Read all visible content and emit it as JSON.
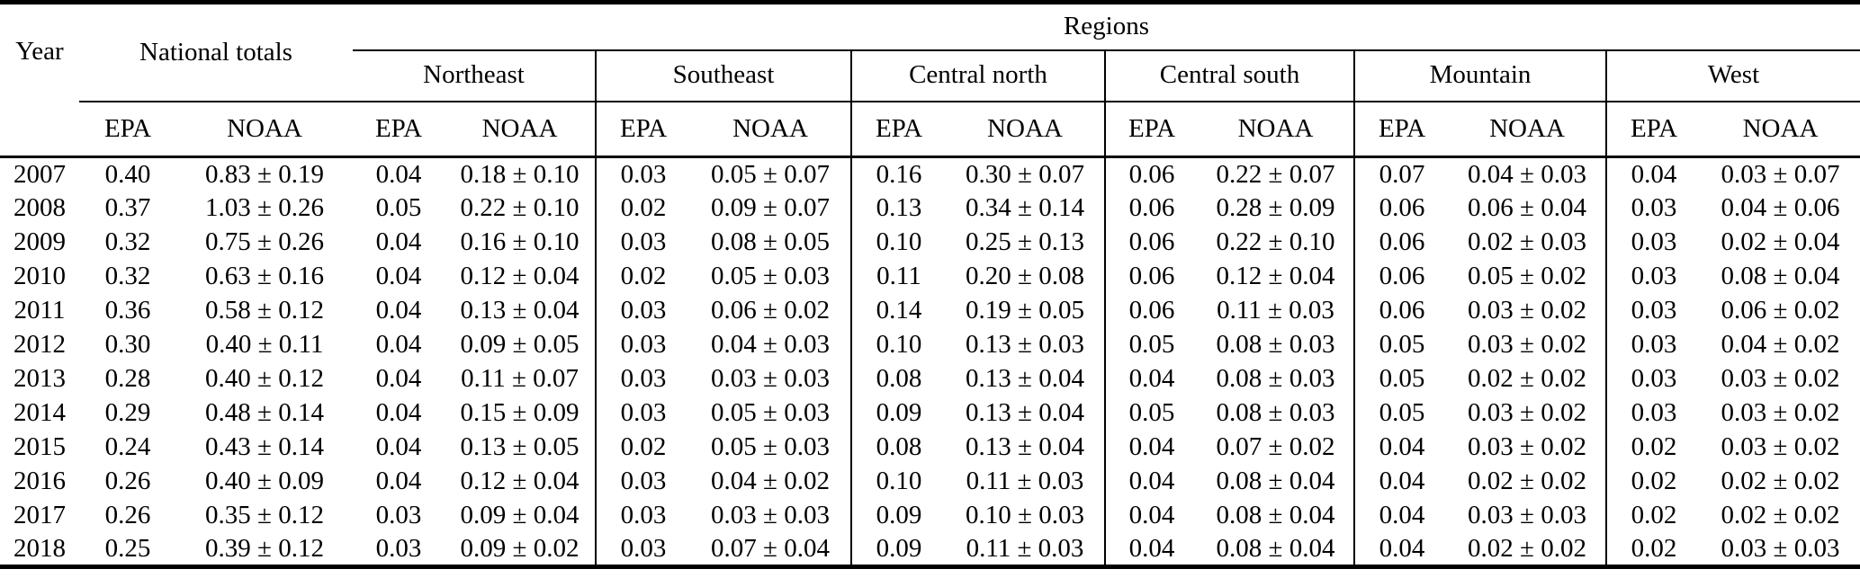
{
  "table": {
    "year_label": "Year",
    "national_label": "National totals",
    "regions_label": "Regions",
    "region_names": [
      "Northeast",
      "Southeast",
      "Central north",
      "Central south",
      "Mountain",
      "West"
    ],
    "source_labels": [
      "EPA",
      "NOAA"
    ],
    "column_groups": [
      "National totals",
      "Northeast",
      "Southeast",
      "Central north",
      "Central south",
      "Mountain",
      "West"
    ],
    "rows": [
      {
        "year": "2007",
        "values": [
          "0.40",
          "0.83 ± 0.19",
          "0.04",
          "0.18 ± 0.10",
          "0.03",
          "0.05 ± 0.07",
          "0.16",
          "0.30 ± 0.07",
          "0.06",
          "0.22 ± 0.07",
          "0.07",
          "0.04 ± 0.03",
          "0.04",
          "0.03 ± 0.07"
        ]
      },
      {
        "year": "2008",
        "values": [
          "0.37",
          "1.03 ± 0.26",
          "0.05",
          "0.22 ± 0.10",
          "0.02",
          "0.09 ± 0.07",
          "0.13",
          "0.34 ± 0.14",
          "0.06",
          "0.28 ± 0.09",
          "0.06",
          "0.06 ± 0.04",
          "0.03",
          "0.04 ± 0.06"
        ]
      },
      {
        "year": "2009",
        "values": [
          "0.32",
          "0.75 ± 0.26",
          "0.04",
          "0.16 ± 0.10",
          "0.03",
          "0.08 ± 0.05",
          "0.10",
          "0.25 ± 0.13",
          "0.06",
          "0.22 ± 0.10",
          "0.06",
          "0.02 ± 0.03",
          "0.03",
          "0.02 ± 0.04"
        ]
      },
      {
        "year": "2010",
        "values": [
          "0.32",
          "0.63 ± 0.16",
          "0.04",
          "0.12 ± 0.04",
          "0.02",
          "0.05 ± 0.03",
          "0.11",
          "0.20 ± 0.08",
          "0.06",
          "0.12 ± 0.04",
          "0.06",
          "0.05 ± 0.02",
          "0.03",
          "0.08 ± 0.04"
        ]
      },
      {
        "year": "2011",
        "values": [
          "0.36",
          "0.58 ± 0.12",
          "0.04",
          "0.13 ± 0.04",
          "0.03",
          "0.06 ± 0.02",
          "0.14",
          "0.19 ± 0.05",
          "0.06",
          "0.11 ± 0.03",
          "0.06",
          "0.03 ± 0.02",
          "0.03",
          "0.06 ± 0.02"
        ]
      },
      {
        "year": "2012",
        "values": [
          "0.30",
          "0.40 ± 0.11",
          "0.04",
          "0.09 ± 0.05",
          "0.03",
          "0.04 ± 0.03",
          "0.10",
          "0.13 ± 0.03",
          "0.05",
          "0.08 ± 0.03",
          "0.05",
          "0.03 ± 0.02",
          "0.03",
          "0.04 ± 0.02"
        ]
      },
      {
        "year": "2013",
        "values": [
          "0.28",
          "0.40 ± 0.12",
          "0.04",
          "0.11 ± 0.07",
          "0.03",
          "0.03 ± 0.03",
          "0.08",
          "0.13 ± 0.04",
          "0.04",
          "0.08 ± 0.03",
          "0.05",
          "0.02 ± 0.02",
          "0.03",
          "0.03 ± 0.02"
        ]
      },
      {
        "year": "2014",
        "values": [
          "0.29",
          "0.48 ± 0.14",
          "0.04",
          "0.15 ± 0.09",
          "0.03",
          "0.05 ± 0.03",
          "0.09",
          "0.13 ± 0.04",
          "0.05",
          "0.08 ± 0.03",
          "0.05",
          "0.03 ± 0.02",
          "0.03",
          "0.03 ± 0.02"
        ]
      },
      {
        "year": "2015",
        "values": [
          "0.24",
          "0.43 ± 0.14",
          "0.04",
          "0.13 ± 0.05",
          "0.02",
          "0.05 ± 0.03",
          "0.08",
          "0.13 ± 0.04",
          "0.04",
          "0.07 ± 0.02",
          "0.04",
          "0.03 ± 0.02",
          "0.02",
          "0.03 ± 0.02"
        ]
      },
      {
        "year": "2016",
        "values": [
          "0.26",
          "0.40 ± 0.09",
          "0.04",
          "0.12 ± 0.04",
          "0.03",
          "0.04 ± 0.02",
          "0.10",
          "0.11 ± 0.03",
          "0.04",
          "0.08 ± 0.04",
          "0.04",
          "0.02 ± 0.02",
          "0.02",
          "0.02 ± 0.02"
        ]
      },
      {
        "year": "2017",
        "values": [
          "0.26",
          "0.35 ± 0.12",
          "0.03",
          "0.09 ± 0.04",
          "0.03",
          "0.03 ± 0.03",
          "0.09",
          "0.10 ± 0.03",
          "0.04",
          "0.08 ± 0.04",
          "0.04",
          "0.03 ± 0.03",
          "0.02",
          "0.02 ± 0.02"
        ]
      },
      {
        "year": "2018",
        "values": [
          "0.25",
          "0.39 ± 0.12",
          "0.03",
          "0.09 ± 0.02",
          "0.03",
          "0.07 ± 0.04",
          "0.09",
          "0.11 ± 0.03",
          "0.04",
          "0.08 ± 0.04",
          "0.04",
          "0.02 ± 0.02",
          "0.02",
          "0.03 ± 0.03"
        ]
      }
    ]
  },
  "colors": {
    "background": "#ffffff",
    "text": "#000000",
    "rule": "#000000"
  }
}
